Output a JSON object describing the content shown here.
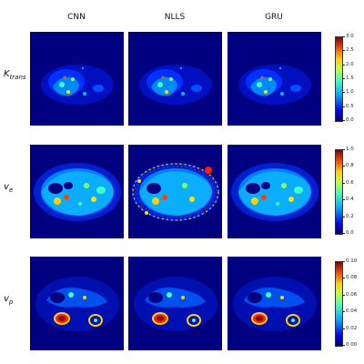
{
  "columns": [
    "CNN",
    "NLLS",
    "GRU"
  ],
  "rows": [
    {
      "label_main": "K",
      "label_sub": "trans",
      "ticks": [
        "3.0",
        "2.5",
        "2.0",
        "1.5",
        "1.0",
        "0.5",
        "0.0"
      ]
    },
    {
      "label_main": "v",
      "label_sub": "e",
      "ticks": [
        "1.0",
        "0.8",
        "0.6",
        "0.4",
        "0.2",
        "0.0"
      ]
    },
    {
      "label_main": "v",
      "label_sub": "p",
      "ticks": [
        "0.10",
        "0.08",
        "0.06",
        "0.04",
        "0.02",
        "0.00"
      ]
    }
  ],
  "colors": {
    "background": "#000080",
    "colormap": "jet"
  }
}
